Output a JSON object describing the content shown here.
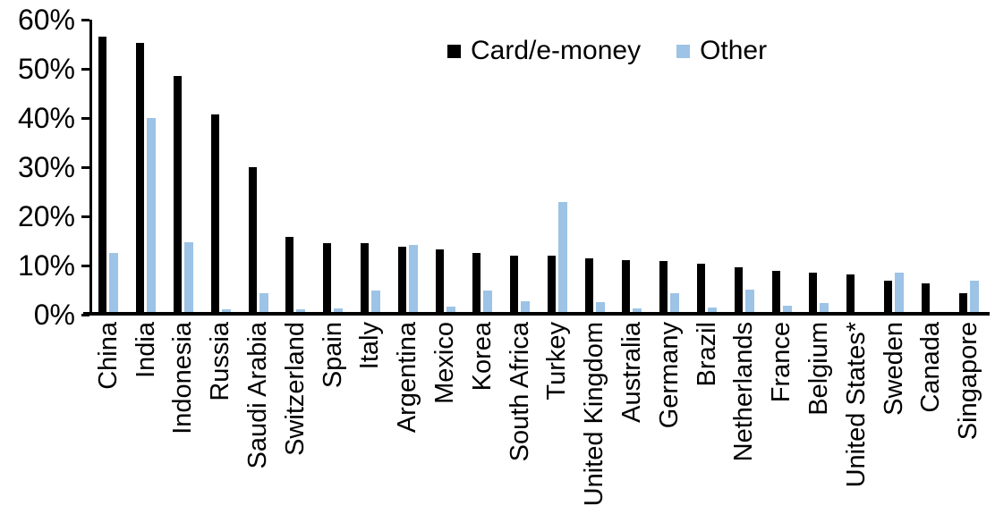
{
  "chart_data": {
    "type": "bar",
    "categories": [
      "China",
      "India",
      "Indonesia",
      "Russia",
      "Saudi Arabia",
      "Switzerland",
      "Spain",
      "Italy",
      "Argentina",
      "Mexico",
      "Korea",
      "South Africa",
      "Turkey",
      "United Kingdom",
      "Australia",
      "Germany",
      "Brazil",
      "Netherlands",
      "France",
      "Belgium",
      "United States*",
      "Sweden",
      "Canada",
      "Singapore"
    ],
    "series": [
      {
        "name": "Card/e-money",
        "color": "#000000",
        "values": [
          56.3,
          55.1,
          48.4,
          40.6,
          29.9,
          15.7,
          14.4,
          14.3,
          13.6,
          13.1,
          12.4,
          11.9,
          11.8,
          11.2,
          10.9,
          10.7,
          10.1,
          9.4,
          8.8,
          8.3,
          8.0,
          6.8,
          6.1,
          4.1
        ]
      },
      {
        "name": "Other",
        "color": "#9DC3E6",
        "values": [
          12.4,
          39.8,
          14.6,
          1.0,
          4.1,
          0.9,
          1.1,
          4.7,
          14.0,
          1.4,
          4.8,
          2.5,
          22.7,
          2.3,
          1.1,
          4.1,
          1.3,
          4.9,
          1.6,
          2.1,
          0.4,
          8.3,
          0,
          6.8
        ]
      }
    ],
    "ylim": [
      0,
      60
    ],
    "ytick_step": 10,
    "ytick_labels": [
      "0%",
      "10%",
      "20%",
      "30%",
      "40%",
      "50%",
      "60%"
    ],
    "legend_position": "top-center",
    "grid": "off",
    "x_label_rotation": 90
  }
}
